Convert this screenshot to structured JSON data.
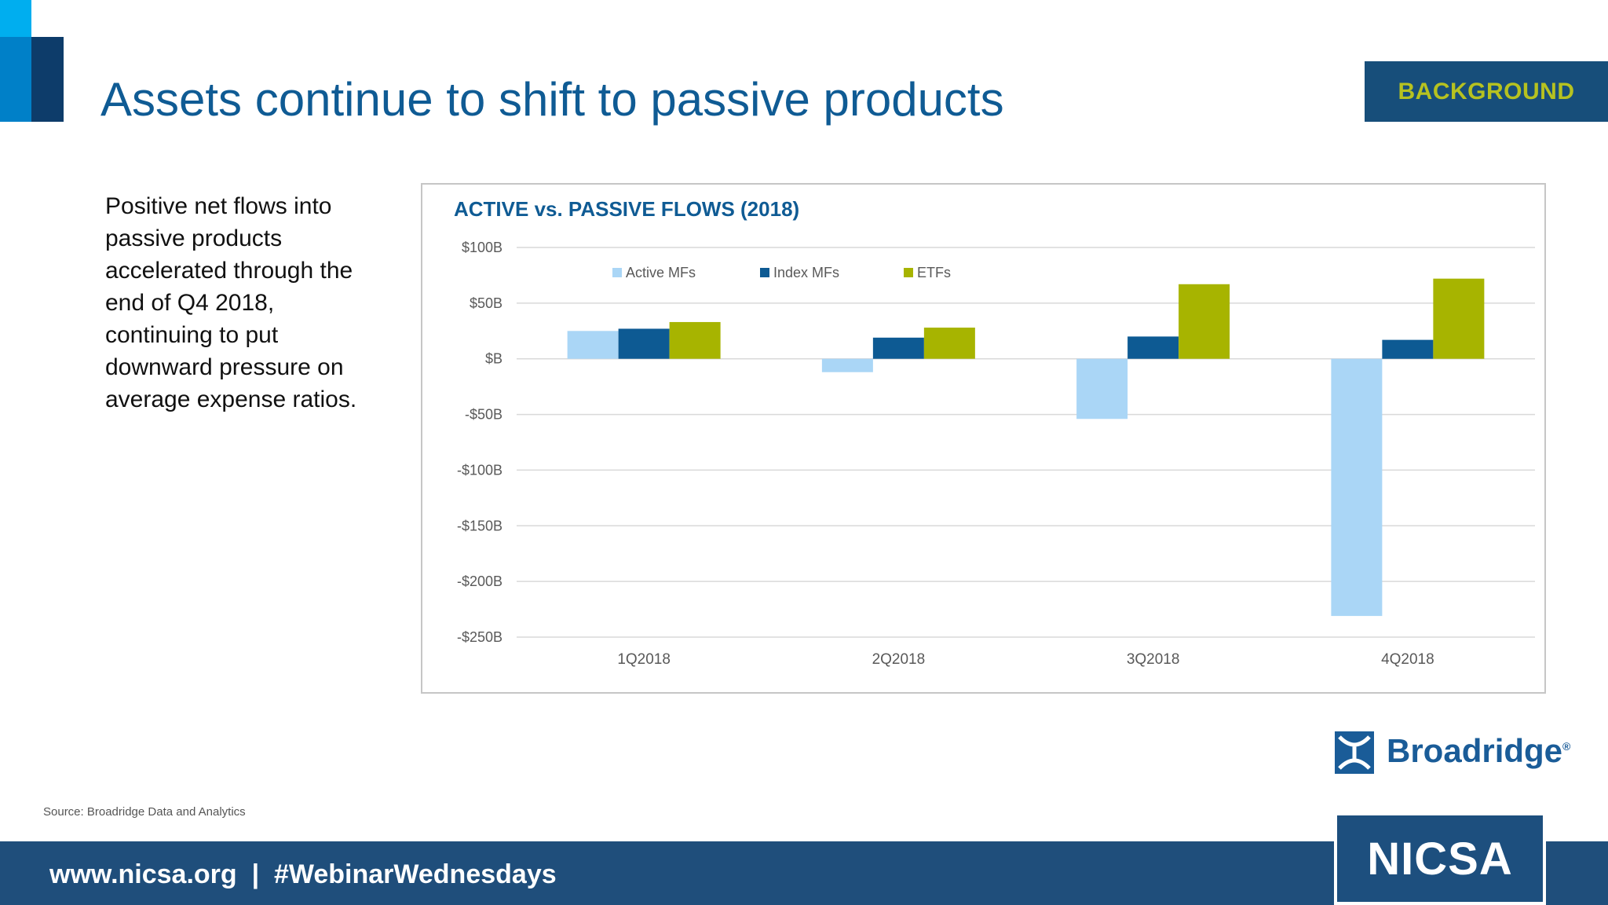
{
  "slide": {
    "title": "Assets continue to shift to passive products",
    "badge": "BACKGROUND",
    "intro": "Positive net flows into passive products accelerated through the end of Q4 2018, continuing to put downward pressure on average expense ratios.",
    "source": "Source: Broadridge Data and Analytics",
    "footer": "www.nicsa.org  |  #WebinarWednesdays",
    "logo_name": "Broadridge",
    "logo_mark": "®",
    "nicsa": "NICSA"
  },
  "colors": {
    "accent": "#0f5b94",
    "active": "#aad6f6",
    "index": "#0d5a93",
    "etf": "#a7b400"
  },
  "chart_data": {
    "type": "bar",
    "title": "ACTIVE vs. PASSIVE FLOWS (2018)",
    "categories": [
      "1Q2018",
      "2Q2018",
      "3Q2018",
      "4Q2018"
    ],
    "series": [
      {
        "name": "Active MFs",
        "values": [
          25,
          -12,
          -54,
          -231
        ]
      },
      {
        "name": "Index MFs",
        "values": [
          27,
          19,
          20,
          17
        ]
      },
      {
        "name": "ETFs",
        "values": [
          33,
          28,
          67,
          72
        ]
      }
    ],
    "ylim": [
      -250,
      100
    ],
    "yticks": [
      100,
      50,
      0,
      -50,
      -100,
      -150,
      -200,
      -250
    ],
    "ytick_labels": [
      "$100B",
      "$50B",
      "$B",
      "-$50B",
      "-$100B",
      "-$150B",
      "-$200B",
      "-$250B"
    ],
    "legend_position": "top-center",
    "grid": true
  }
}
